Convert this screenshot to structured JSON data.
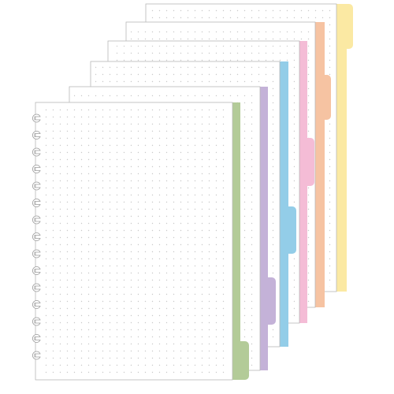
{
  "pages": [
    {
      "color": "#fbe9a3"
    },
    {
      "color": "#f6c3a2"
    },
    {
      "color": "#f4bcd6"
    },
    {
      "color": "#93cde8"
    },
    {
      "color": "#c4b2d8"
    },
    {
      "color": "#b3cb98"
    }
  ]
}
